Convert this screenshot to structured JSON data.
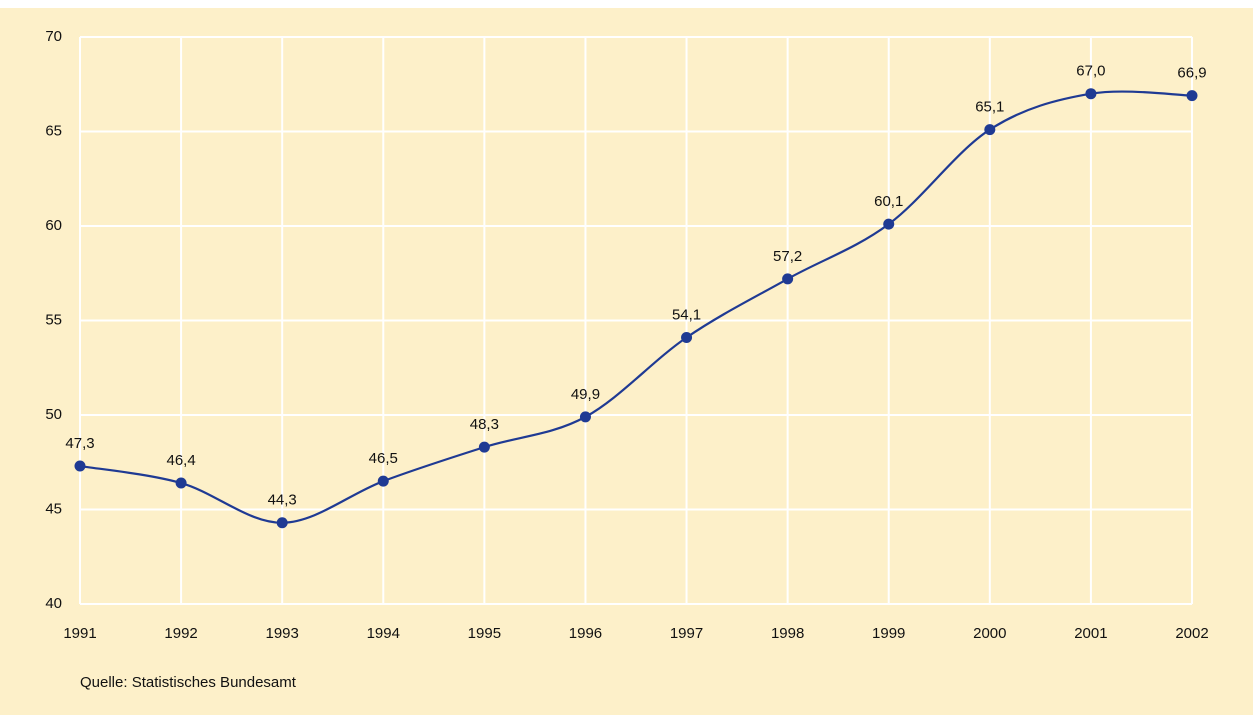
{
  "chart_data": {
    "type": "line",
    "categories": [
      "1991",
      "1992",
      "1993",
      "1994",
      "1995",
      "1996",
      "1997",
      "1998",
      "1999",
      "2000",
      "2001",
      "2002"
    ],
    "series": [
      {
        "color": "#1f3a93",
        "values": [
          47.3,
          46.4,
          44.3,
          46.5,
          48.3,
          49.9,
          54.1,
          57.2,
          60.1,
          65.1,
          67.0,
          66.9
        ],
        "value_labels": [
          "47,3",
          "46,4",
          "44,3",
          "46,5",
          "48,3",
          "49,9",
          "54,1",
          "57,2",
          "60,1",
          "65,1",
          "67,0",
          "66,9"
        ]
      }
    ],
    "ylim": [
      40,
      70
    ],
    "yticks": [
      40,
      45,
      50,
      55,
      60,
      65,
      70
    ],
    "grid": true,
    "smooth": true,
    "source": "Quelle: Statistisches Bundesamt"
  }
}
